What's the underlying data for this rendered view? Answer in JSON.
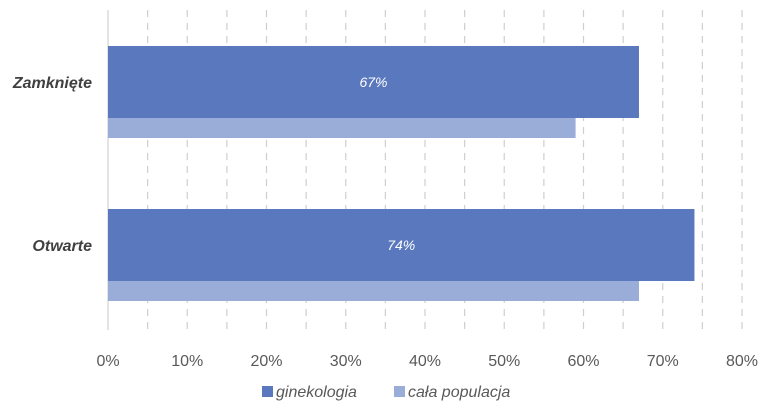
{
  "chart_data": {
    "type": "bar",
    "orientation": "horizontal",
    "categories": [
      "Zamknięte",
      "Otwarte"
    ],
    "series": [
      {
        "name": "ginekologia",
        "values": [
          67,
          74
        ],
        "color": "#5a78bd",
        "data_labels": [
          "67%",
          "74%"
        ]
      },
      {
        "name": "cała populacja",
        "values": [
          59,
          67
        ],
        "color": "#9aacd8"
      }
    ],
    "xlim": [
      0,
      80
    ],
    "x_ticks": [
      "0%",
      "10%",
      "20%",
      "30%",
      "40%",
      "50%",
      "60%",
      "70%",
      "80%"
    ],
    "grid": "vertical-dashed",
    "legend": "bottom"
  }
}
